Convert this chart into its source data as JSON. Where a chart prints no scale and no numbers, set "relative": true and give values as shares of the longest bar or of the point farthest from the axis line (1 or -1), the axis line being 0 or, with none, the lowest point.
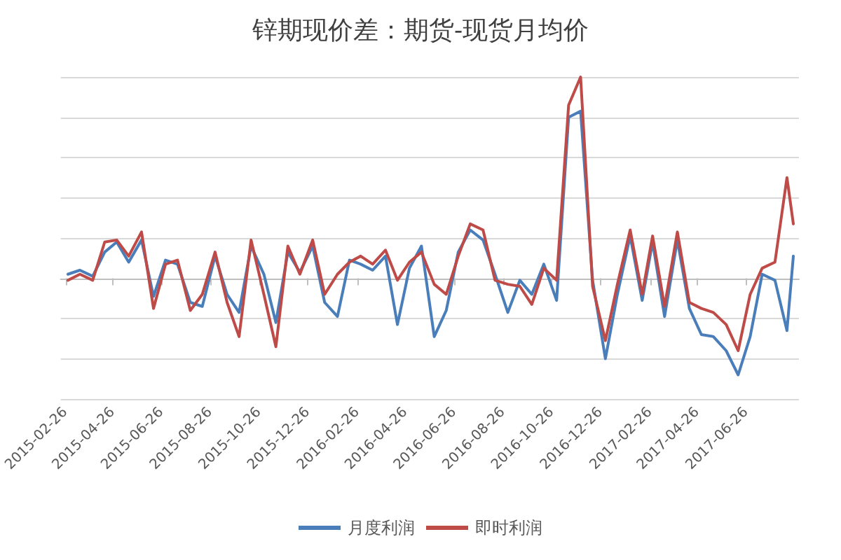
{
  "chart_data": {
    "type": "line",
    "title": "锌期现价差：期货-现货月均价",
    "relative": true,
    "grid": "y",
    "legend": "bottom",
    "marker": "none",
    "line_style": "solid",
    "xlim": [
      "2015-02-20",
      "2017-08-31"
    ],
    "xticks": [
      "2015-02-26",
      "2015-04-26",
      "2015-06-26",
      "2015-08-26",
      "2015-10-26",
      "2015-12-26",
      "2016-02-26",
      "2016-04-26",
      "2016-06-26",
      "2016-08-26",
      "2016-10-26",
      "2016-12-26",
      "2017-02-26",
      "2017-04-26",
      "2017-06-26"
    ],
    "x": [
      "2015-03-01",
      "2015-03-16",
      "2015-04-01",
      "2015-04-16",
      "2015-05-01",
      "2015-05-16",
      "2015-06-01",
      "2015-06-16",
      "2015-07-01",
      "2015-07-16",
      "2015-08-01",
      "2015-08-16",
      "2015-09-01",
      "2015-09-16",
      "2015-10-01",
      "2015-10-16",
      "2015-11-01",
      "2015-11-16",
      "2015-12-01",
      "2015-12-16",
      "2016-01-01",
      "2016-01-16",
      "2016-02-01",
      "2016-02-16",
      "2016-03-01",
      "2016-03-16",
      "2016-04-01",
      "2016-04-16",
      "2016-05-01",
      "2016-05-16",
      "2016-06-01",
      "2016-06-16",
      "2016-07-01",
      "2016-07-16",
      "2016-08-01",
      "2016-08-16",
      "2016-09-01",
      "2016-09-16",
      "2016-10-01",
      "2016-10-16",
      "2016-11-01",
      "2016-11-16",
      "2016-12-01",
      "2016-12-16",
      "2017-01-01",
      "2017-01-16",
      "2017-02-01",
      "2017-02-16",
      "2017-03-01",
      "2017-03-16",
      "2017-04-01",
      "2017-04-16",
      "2017-05-01",
      "2017-05-16",
      "2017-06-01",
      "2017-06-16",
      "2017-07-01",
      "2017-07-16",
      "2017-08-01",
      "2017-08-16",
      "2017-08-24"
    ],
    "series": [
      {
        "name": "月度利润",
        "color": "#4a7ebb",
        "values": [
          0.02,
          0.04,
          0.01,
          0.13,
          0.18,
          0.08,
          0.19,
          -0.09,
          0.09,
          0.07,
          -0.12,
          -0.14,
          0.11,
          -0.08,
          -0.17,
          0.16,
          0.02,
          -0.22,
          0.13,
          0.03,
          0.16,
          -0.12,
          -0.19,
          0.09,
          0.07,
          0.04,
          0.11,
          -0.23,
          0.05,
          0.16,
          -0.29,
          -0.16,
          0.13,
          0.24,
          0.19,
          0.02,
          -0.17,
          -0.01,
          -0.08,
          0.07,
          -0.11,
          0.8,
          0.83,
          -0.01,
          -0.4,
          -0.08,
          0.21,
          -0.11,
          0.18,
          -0.19,
          0.19,
          -0.15,
          -0.28,
          -0.29,
          -0.36,
          -0.48,
          -0.29,
          0.02,
          -0.01,
          -0.26,
          0.11
        ]
      },
      {
        "name": "即时利润",
        "color": "#be4b48",
        "values": [
          -0.01,
          0.02,
          -0.01,
          0.18,
          0.19,
          0.11,
          0.23,
          -0.15,
          0.07,
          0.09,
          -0.16,
          -0.08,
          0.13,
          -0.12,
          -0.29,
          0.19,
          -0.08,
          -0.34,
          0.16,
          0.02,
          0.19,
          -0.08,
          0.02,
          0.08,
          0.11,
          0.07,
          0.14,
          -0.01,
          0.08,
          0.13,
          -0.03,
          -0.08,
          0.11,
          0.27,
          0.24,
          -0.01,
          -0.03,
          -0.04,
          -0.13,
          0.05,
          -0.01,
          0.86,
          1,
          -0.04,
          -0.31,
          -0.03,
          0.24,
          -0.08,
          0.21,
          -0.14,
          0.23,
          -0.12,
          -0.15,
          -0.17,
          -0.23,
          -0.36,
          -0.08,
          0.05,
          0.08,
          0.5,
          0.27
        ]
      }
    ]
  }
}
